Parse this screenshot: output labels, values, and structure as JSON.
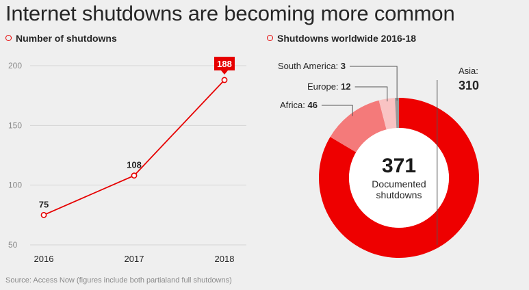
{
  "title": "Internet shutdowns are becoming more common",
  "source": "Source: Access Now (figures include both partialand full shutdowns)",
  "colors": {
    "accent": "#e60000",
    "asia": "#ee0000",
    "africa": "#f47a7a",
    "europe": "#f9c3c3",
    "south_america": "#999999",
    "text": "#262626",
    "grid": "#d5d5d5"
  },
  "chart_data": [
    {
      "type": "line",
      "title": "Number of shutdowns",
      "categories": [
        "2016",
        "2017",
        "2018"
      ],
      "series": [
        {
          "values": [
            75,
            108,
            188
          ]
        }
      ],
      "data_labels": [
        "75",
        "108",
        "188"
      ],
      "highlight_index": 2,
      "yticks": [
        "50",
        "100",
        "150",
        "200"
      ],
      "ylim": [
        50,
        200
      ],
      "grid": true
    },
    {
      "type": "pie",
      "title": "Shutdowns worldwide 2016-18",
      "total": "371",
      "center_caption": [
        "Documented",
        "shutdowns"
      ],
      "slices": [
        {
          "name": "Asia",
          "value": 310,
          "label": "Asia:",
          "value_label": "310"
        },
        {
          "name": "Africa",
          "value": 46,
          "label": "Africa:",
          "value_label": "46"
        },
        {
          "name": "Europe",
          "value": 12,
          "label": "Europe:",
          "value_label": "12"
        },
        {
          "name": "South America",
          "value": 3,
          "label": "South America:",
          "value_label": "3"
        }
      ]
    }
  ]
}
